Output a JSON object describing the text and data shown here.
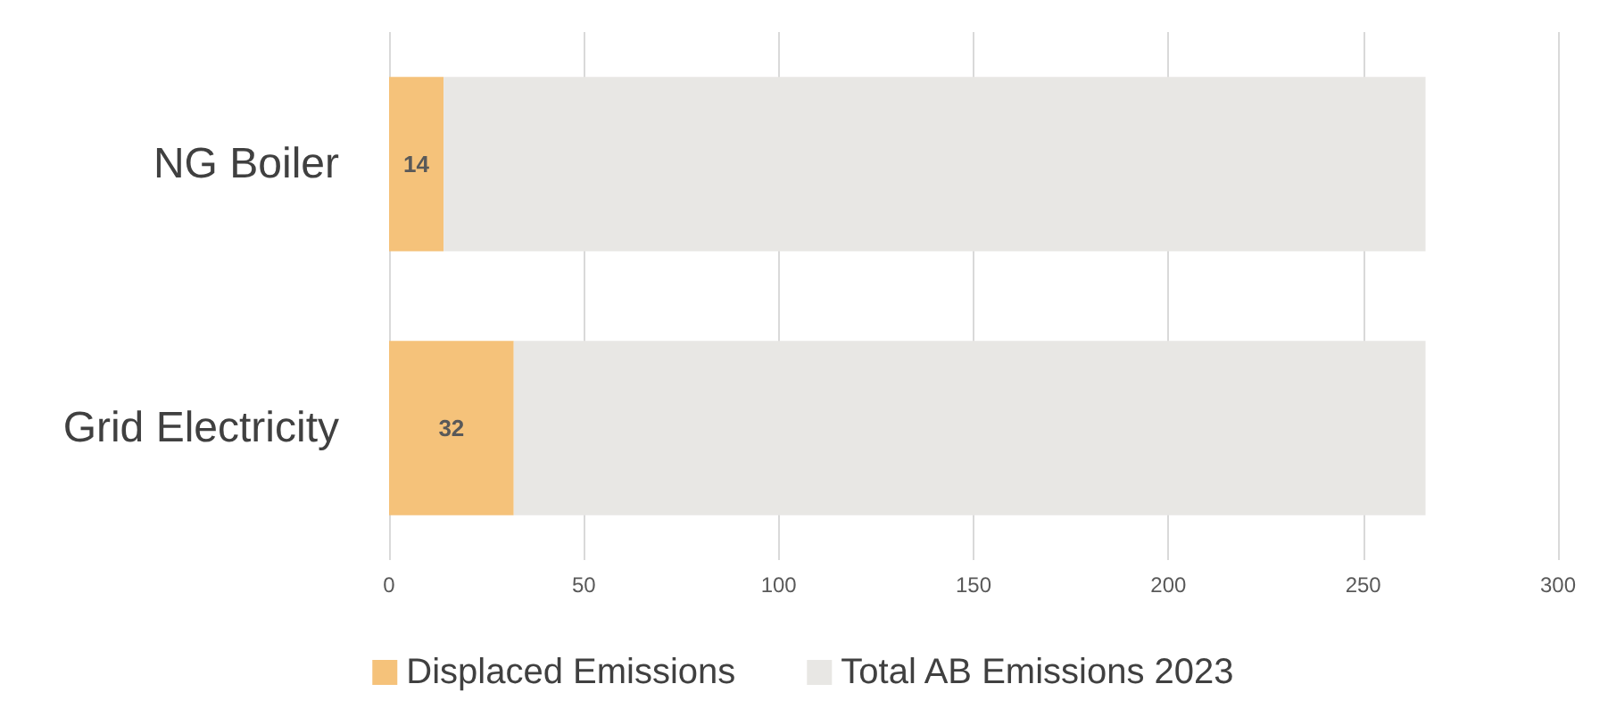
{
  "chart_data": {
    "type": "bar",
    "orientation": "horizontal",
    "stacked": true,
    "categories": [
      "NG Boiler",
      "Grid Electricity"
    ],
    "series": [
      {
        "name": "Displaced Emissions",
        "color": "#f5c27a",
        "values": [
          14,
          32
        ],
        "value_labels": [
          "14",
          "32"
        ]
      },
      {
        "name": "Total AB Emissions 2023",
        "color": "#e8e7e4",
        "values": [
          252,
          234
        ]
      }
    ],
    "xlim": [
      0,
      300
    ],
    "xticks": [
      0,
      50,
      100,
      150,
      200,
      250,
      300
    ],
    "grid": "x",
    "legend": "bottom"
  }
}
